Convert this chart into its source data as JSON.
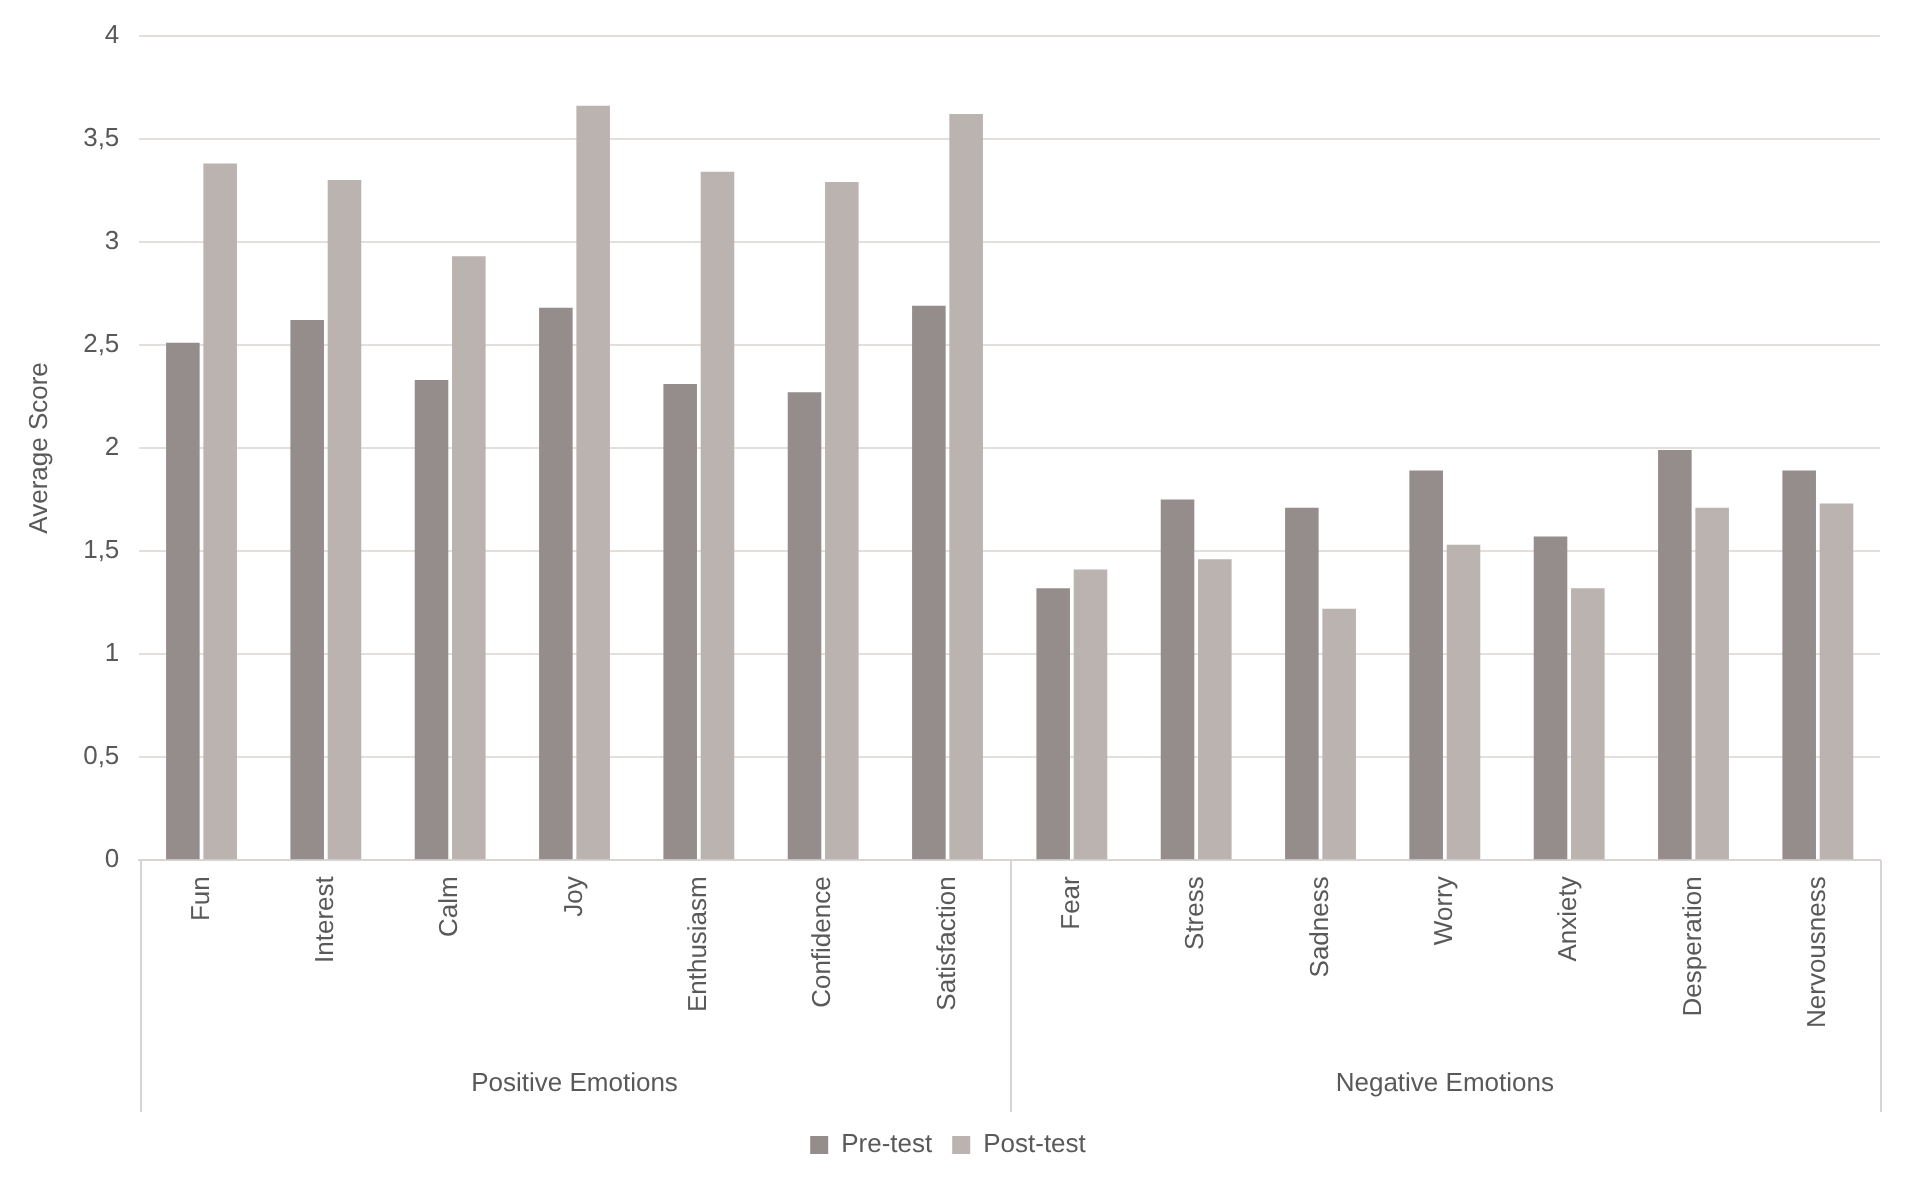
{
  "chart_data": {
    "type": "bar",
    "ylabel": "Average Score",
    "categories": [
      "Fun",
      "Interest",
      "Calm",
      "Joy",
      "Enthusiasm",
      "Confidence",
      "Satisfaction",
      "Fear",
      "Stress",
      "Sadness",
      "Worry",
      "Anxiety",
      "Desperation",
      "Nervousness"
    ],
    "series": [
      {
        "name": "Pre-test",
        "color": "#958d8b",
        "values": [
          2.51,
          2.62,
          2.33,
          2.68,
          2.31,
          2.27,
          2.69,
          1.32,
          1.75,
          1.71,
          1.89,
          1.57,
          1.99,
          1.89
        ]
      },
      {
        "name": "Post-test",
        "color": "#bab3b0",
        "values": [
          3.38,
          3.3,
          2.93,
          3.66,
          3.34,
          3.29,
          3.62,
          1.41,
          1.46,
          1.22,
          1.53,
          1.32,
          1.71,
          1.73
        ]
      }
    ],
    "annotations": [
      "Positive Emotions",
      "Negative Emotions"
    ],
    "ylim": [
      0,
      4
    ],
    "yticks": [
      0,
      {
        "value": 0.5,
        "label": "0,5"
      },
      1,
      {
        "value": 1.5,
        "label": "1,5"
      },
      2,
      {
        "value": 2.5,
        "label": "2,5"
      },
      3,
      {
        "value": 3.5,
        "label": "3,5"
      },
      4
    ],
    "grid": "y",
    "legend": "bottom"
  }
}
